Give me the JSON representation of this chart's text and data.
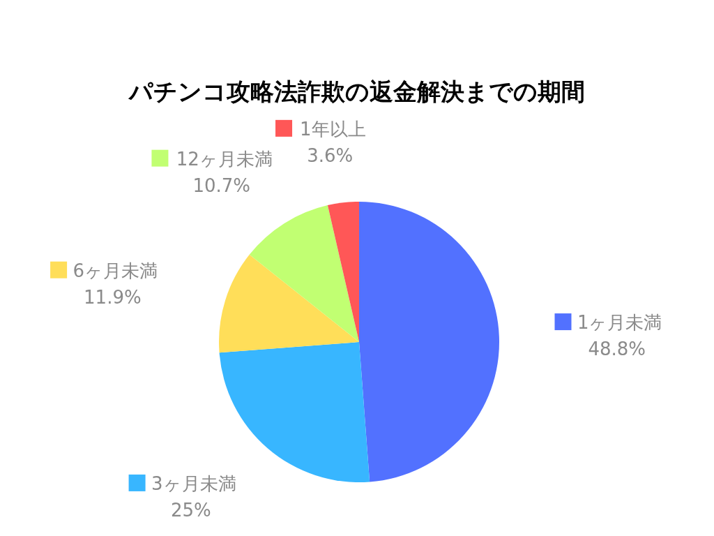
{
  "chart_data": {
    "type": "pie",
    "title": "パチンコ攻略法詐欺の返金解決までの期間",
    "categories": [
      "1ヶ月未満",
      "3ヶ月未満",
      "6ヶ月未満",
      "12ヶ月未満",
      "1年以上"
    ],
    "values": [
      48.8,
      25,
      11.9,
      10.7,
      3.6
    ],
    "value_labels": [
      "48.8%",
      "25%",
      "11.9%",
      "10.7%",
      "3.6%"
    ],
    "colors": [
      "#5271ff",
      "#38b6ff",
      "#ffde59",
      "#c1ff72",
      "#ff5757"
    ],
    "legend": "left"
  }
}
